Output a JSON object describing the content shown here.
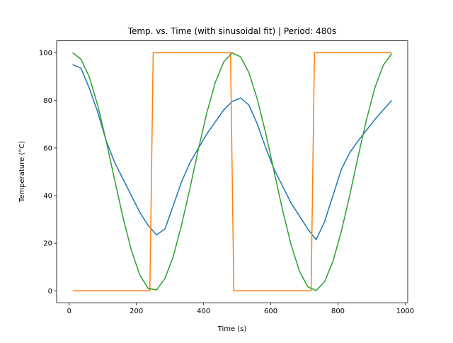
{
  "chart_data": {
    "type": "line",
    "title": "Temp. vs. Time (with sinusoidal fit) | Period: 480s",
    "x_label": "Time (s)",
    "y_label": "Temperature (°C)",
    "x": [
      10,
      35,
      60,
      85,
      110,
      135,
      160,
      185,
      210,
      235,
      260,
      285,
      310,
      335,
      360,
      385,
      410,
      435,
      460,
      485,
      510,
      535,
      560,
      585,
      610,
      635,
      660,
      685,
      710,
      735,
      760,
      785,
      810,
      835,
      860,
      885,
      910,
      935,
      960
    ],
    "series": [
      {
        "color": "#1f77b4",
        "values": [
          95,
          93.5,
          85,
          75,
          63,
          54,
          47,
          40,
          33,
          27.5,
          23.5,
          26,
          36,
          46,
          54,
          60,
          66,
          71,
          76,
          79.5,
          81,
          78,
          70,
          60,
          51,
          44,
          37,
          31.5,
          26,
          21.5,
          29,
          40,
          51,
          58,
          63,
          67.5,
          72,
          76,
          80
        ]
      },
      {
        "color": "#ff7f0e",
        "x": [
          10,
          240,
          250,
          480,
          490,
          720,
          730,
          960
        ],
        "values": [
          0,
          0,
          100,
          100,
          0,
          0,
          100,
          100
        ]
      },
      {
        "color": "#2ca02c",
        "values": [
          100,
          97.3,
          89.7,
          77.8,
          62.9,
          46.7,
          30.9,
          17.0,
          6.7,
          1.0,
          0.4,
          5.2,
          14.6,
          28.0,
          43.5,
          59.8,
          75,
          87.6,
          96.2,
          99.9,
          98.3,
          91.6,
          80.4,
          66.1,
          50,
          33.9,
          19.6,
          8.4,
          1.7,
          0.1,
          3.8,
          12.4,
          25,
          40.2,
          56.5,
          72.0,
          85.4,
          94.8,
          99.6
        ]
      }
    ],
    "xlim": [
      -37.5,
      1007.5
    ],
    "ylim": [
      -5,
      105
    ],
    "xticks": [
      0,
      200,
      400,
      600,
      800,
      1000
    ],
    "yticks": [
      0,
      20,
      40,
      60,
      80,
      100
    ]
  }
}
